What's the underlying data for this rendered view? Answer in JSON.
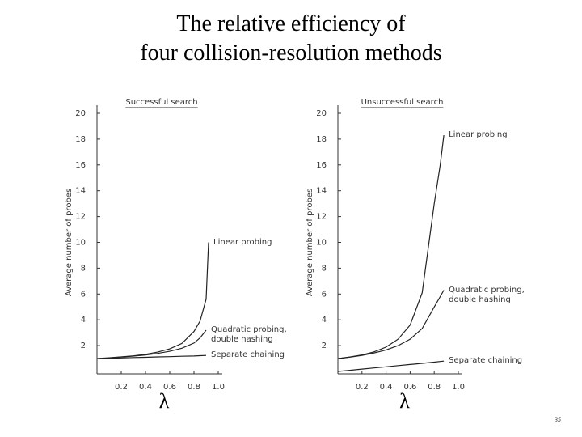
{
  "slide": {
    "title": [
      "The relative efficiency of",
      "four collision-resolution methods"
    ],
    "page_number": "35"
  },
  "chart_data": [
    {
      "type": "line",
      "title": "Successful search",
      "y_label": "Average number of probes",
      "x_label": "λ",
      "x": [
        0,
        0.1,
        0.2,
        0.3,
        0.4,
        0.5,
        0.6,
        0.7,
        0.8,
        0.85,
        0.9,
        0.92
      ],
      "xlim": [
        0,
        1
      ],
      "xticks": [
        0.2,
        0.4,
        0.6,
        0.8,
        {
          "value": 1,
          "label": "1.0"
        }
      ],
      "ylim": [
        0,
        20
      ],
      "yticks": [
        2,
        4,
        6,
        8,
        10,
        12,
        14,
        16,
        18,
        20
      ],
      "series": [
        {
          "name": "Linear probing",
          "color": "#222222",
          "values": [
            1,
            1.06,
            1.13,
            1.21,
            1.33,
            1.5,
            1.75,
            2.17,
            3.1,
            3.9,
            5.6,
            10
          ]
        },
        {
          "name": "Quadratic probing, double hashing",
          "color": "#222222",
          "values": [
            1,
            1.05,
            1.12,
            1.19,
            1.28,
            1.4,
            1.56,
            1.8,
            2.2,
            2.6,
            3.2,
            null
          ]
        },
        {
          "name": "Separate chaining",
          "color": "#222222",
          "values": [
            1,
            1.03,
            1.05,
            1.08,
            1.1,
            1.13,
            1.15,
            1.18,
            1.2,
            1.22,
            1.24,
            null
          ]
        }
      ]
    },
    {
      "type": "line",
      "title": "Unsuccessful search",
      "y_label": "Average number of probes",
      "x_label": "λ",
      "x": [
        0,
        0.1,
        0.2,
        0.3,
        0.4,
        0.5,
        0.6,
        0.7,
        0.8,
        0.85,
        0.88
      ],
      "xlim": [
        0,
        1
      ],
      "xticks": [
        0.2,
        0.4,
        0.6,
        0.8,
        {
          "value": 1,
          "label": "1.0"
        }
      ],
      "ylim": [
        0,
        20
      ],
      "yticks": [
        2,
        4,
        6,
        8,
        10,
        12,
        14,
        16,
        18,
        20
      ],
      "series": [
        {
          "name": "Linear probing",
          "color": "#222222",
          "values": [
            1,
            1.12,
            1.28,
            1.52,
            1.89,
            2.5,
            3.6,
            6.1,
            13,
            16,
            18.3
          ]
        },
        {
          "name": "Quadratic probing, double hashing",
          "color": "#222222",
          "values": [
            1,
            1.11,
            1.25,
            1.43,
            1.67,
            2,
            2.5,
            3.33,
            5,
            5.8,
            6.3
          ]
        },
        {
          "name": "Separate chaining",
          "color": "#222222",
          "values": [
            0,
            0.09,
            0.18,
            0.27,
            0.36,
            0.45,
            0.54,
            0.63,
            0.72,
            0.77,
            0.8
          ]
        }
      ]
    }
  ]
}
